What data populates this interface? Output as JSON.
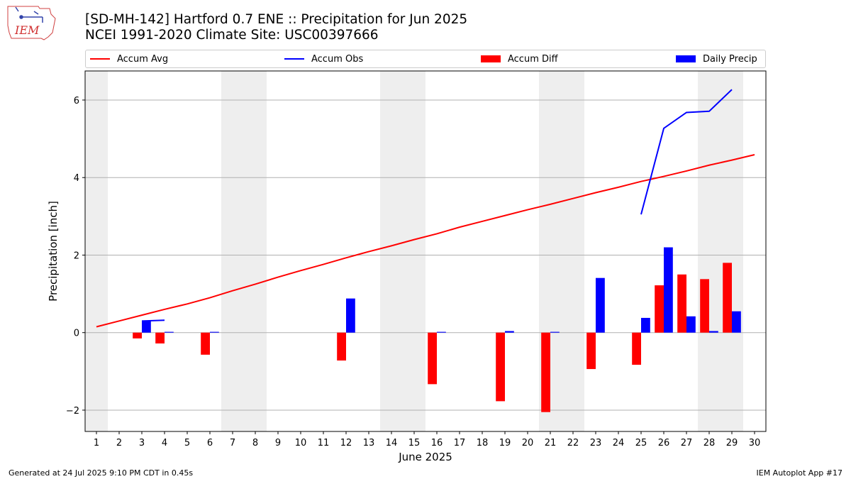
{
  "header": {
    "logo_text": "IEM",
    "title_line1": "[SD-MH-142] Hartford 0.7 ENE :: Precipitation for Jun 2025",
    "title_line2": "NCEI 1991-2020 Climate Site: USC00397666"
  },
  "legend": [
    {
      "label": "Accum Avg",
      "kind": "line",
      "color": "#ff0000"
    },
    {
      "label": "Accum Obs",
      "kind": "line",
      "color": "#0000ff"
    },
    {
      "label": "Accum Diff",
      "kind": "bar",
      "color": "#ff0000"
    },
    {
      "label": "Daily Precip",
      "kind": "bar",
      "color": "#0000ff"
    }
  ],
  "footer": {
    "left": "Generated at 24 Jul 2025 9:10 PM CDT in 0.45s",
    "right": "IEM Autoplot App #17"
  },
  "chart_data": {
    "type": "bar",
    "xlabel": "June 2025",
    "ylabel": "Precipitation [inch]",
    "xlim": [
      0.5,
      30.5
    ],
    "ylim": [
      -2.55,
      6.75
    ],
    "yticks": [
      -2,
      0,
      2,
      4,
      6
    ],
    "xticks": [
      1,
      2,
      3,
      4,
      5,
      6,
      7,
      8,
      9,
      10,
      11,
      12,
      13,
      14,
      15,
      16,
      17,
      18,
      19,
      20,
      21,
      22,
      23,
      24,
      25,
      26,
      27,
      28,
      29,
      30
    ],
    "grid": "horizontal",
    "weekend_shading": [
      [
        0.5,
        1.5
      ],
      [
        6.5,
        8.5
      ],
      [
        13.5,
        15.5
      ],
      [
        20.5,
        22.5
      ],
      [
        27.5,
        29.5
      ]
    ],
    "series": [
      {
        "name": "Accum Avg",
        "kind": "line",
        "color": "#ff0000",
        "x": [
          1,
          2,
          3,
          4,
          5,
          6,
          7,
          8,
          9,
          10,
          11,
          12,
          13,
          14,
          15,
          16,
          17,
          18,
          19,
          20,
          21,
          22,
          23,
          24,
          25,
          26,
          27,
          28,
          29,
          30
        ],
        "values": [
          0.15,
          0.3,
          0.45,
          0.6,
          0.74,
          0.9,
          1.08,
          1.25,
          1.43,
          1.6,
          1.76,
          1.93,
          2.09,
          2.24,
          2.4,
          2.55,
          2.72,
          2.87,
          3.02,
          3.17,
          3.31,
          3.46,
          3.61,
          3.75,
          3.9,
          4.03,
          4.17,
          4.32,
          4.45,
          4.59
        ]
      },
      {
        "name": "Accum Obs",
        "kind": "line",
        "color": "#0000ff",
        "segments": [
          {
            "x": [
              3,
              4
            ],
            "values": [
              0.3,
              0.32
            ]
          },
          {
            "x": [
              25,
              26,
              27,
              28,
              29
            ],
            "values": [
              3.05,
              5.27,
              5.68,
              5.71,
              6.27
            ]
          }
        ]
      },
      {
        "name": "Accum Diff",
        "kind": "bar",
        "color": "#ff0000",
        "x": [
          3,
          4,
          6,
          12,
          16,
          19,
          21,
          23,
          25,
          26,
          27,
          28,
          29
        ],
        "values": [
          -0.15,
          -0.28,
          -0.57,
          -0.72,
          -1.33,
          -1.77,
          -2.05,
          -0.94,
          -0.83,
          1.22,
          1.5,
          1.38,
          1.8
        ]
      },
      {
        "name": "Daily Precip",
        "kind": "bar",
        "color": "#0000ff",
        "x": [
          3,
          4,
          6,
          12,
          16,
          19,
          21,
          23,
          25,
          26,
          27,
          28,
          29
        ],
        "values": [
          0.3,
          0.02,
          0.02,
          0.88,
          0.02,
          0.04,
          0.02,
          1.41,
          0.38,
          2.2,
          0.42,
          0.04,
          0.55
        ]
      }
    ]
  }
}
